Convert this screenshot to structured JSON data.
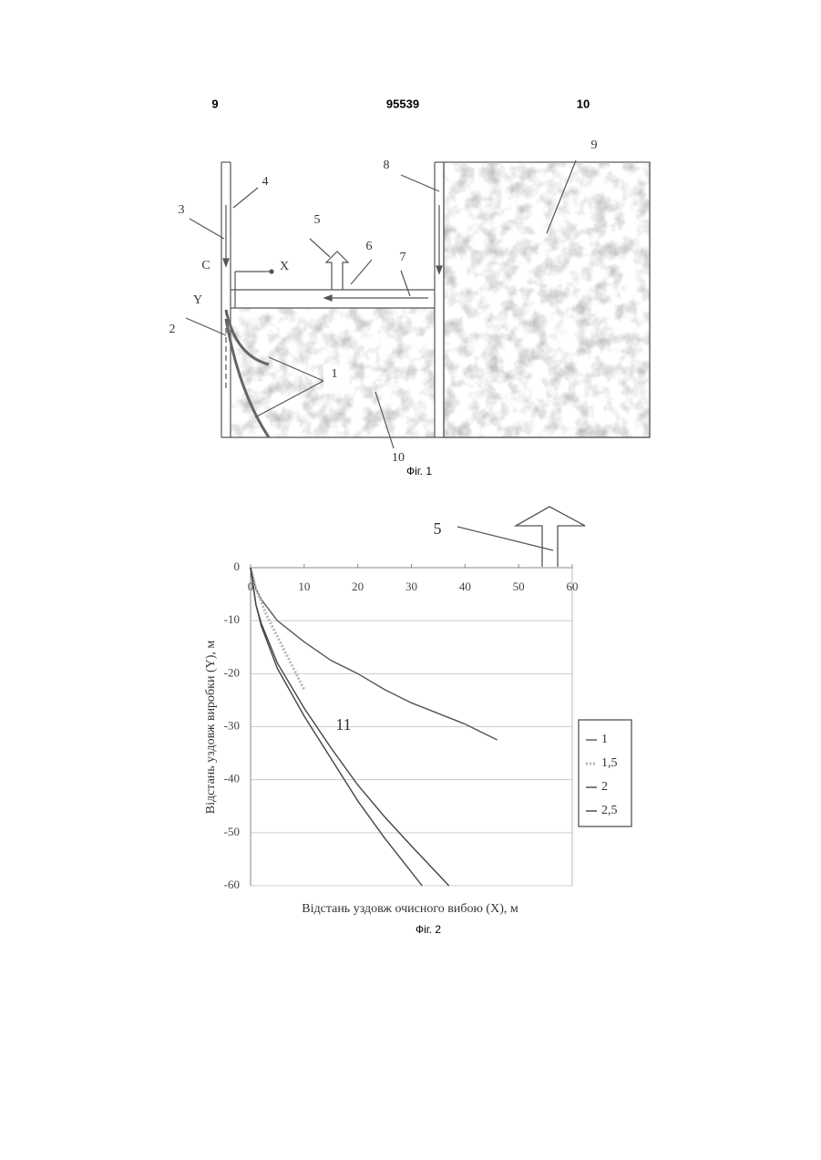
{
  "header": {
    "left": "9",
    "center": "95539",
    "right": "10"
  },
  "figure1": {
    "labels": [
      "1",
      "2",
      "3",
      "4",
      "5",
      "6",
      "7",
      "8",
      "9",
      "10",
      "C",
      "X",
      "Y"
    ],
    "caption": "Фіг. 1"
  },
  "chart_data": {
    "type": "line",
    "x_label": "Відстань уздовж очисного вибою (X), м",
    "y_label": "Відстань уздовж виробки (Y), м",
    "annotations": [
      "5",
      "11"
    ],
    "xlim": [
      0,
      60
    ],
    "xticks": [
      0,
      10,
      20,
      30,
      40,
      50,
      60
    ],
    "ylim": [
      -60,
      0
    ],
    "yticks": [
      0,
      -10,
      -20,
      -30,
      -40,
      -50,
      -60
    ],
    "grid": true,
    "legend": "right",
    "series": [
      {
        "name": "1",
        "color": "#555555",
        "x": [
          0,
          1,
          2,
          5,
          10,
          15,
          20,
          25,
          30,
          35,
          40,
          46
        ],
        "values": [
          0,
          -4,
          -6,
          -10,
          -14,
          -17.5,
          -20,
          -23,
          -25.5,
          -27.5,
          -29.5,
          -32.5
        ]
      },
      {
        "name": "1,5",
        "color": "#b5b5b5",
        "x": [
          0,
          1,
          2,
          3,
          4,
          5,
          6,
          7,
          8,
          9,
          10
        ],
        "values": [
          0,
          -4,
          -6.5,
          -9,
          -11,
          -13,
          -15,
          -17,
          -19,
          -21,
          -23
        ]
      },
      {
        "name": "2",
        "color": "#444444",
        "x": [
          0,
          1,
          2,
          5,
          10,
          15,
          20,
          25,
          32
        ],
        "values": [
          0,
          -7,
          -11,
          -19,
          -28,
          -36,
          -44,
          -51,
          -60
        ]
      },
      {
        "name": "2,5",
        "color": "#444444",
        "x": [
          0,
          1,
          2,
          5,
          10,
          15,
          20,
          25,
          30,
          37
        ],
        "values": [
          0,
          -7,
          -10.5,
          -18,
          -26.5,
          -34,
          -41,
          -47,
          -52.5,
          -60
        ]
      }
    ]
  },
  "figure2": {
    "caption": "Фіг. 2"
  }
}
